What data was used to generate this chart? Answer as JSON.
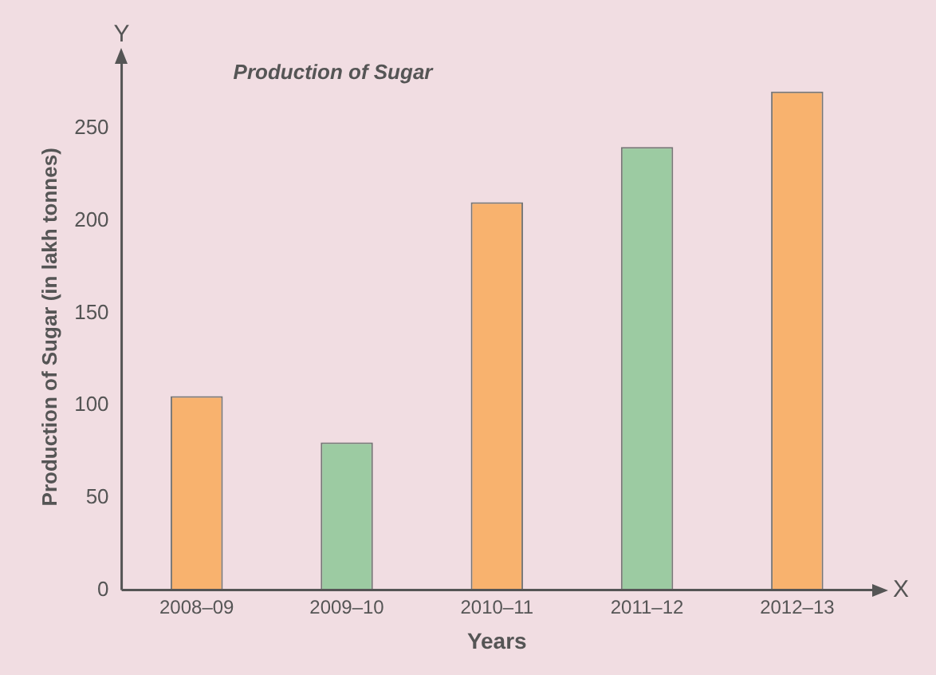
{
  "chart_data": {
    "type": "bar",
    "title": "Production of Sugar",
    "xlabel": "Years",
    "ylabel": "Production of Sugar (in lakh tonnes)",
    "categories": [
      "2008–09",
      "2009–10",
      "2010–11",
      "2011–12",
      "2012–13"
    ],
    "values": [
      105,
      80,
      210,
      240,
      270
    ],
    "colors": [
      "#f8b26e",
      "#9ccba2",
      "#f8b26e",
      "#9ccba2",
      "#f8b26e"
    ],
    "ylim": [
      0,
      285
    ],
    "yticks": [
      0,
      50,
      100,
      150,
      200,
      250
    ],
    "grid": false,
    "legend": false,
    "annotations": [
      "Y",
      "X"
    ]
  }
}
